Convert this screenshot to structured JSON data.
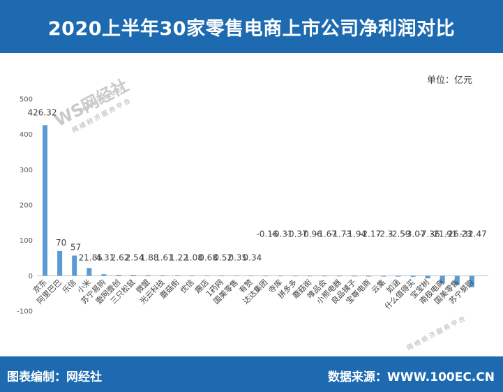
{
  "header": {
    "title": "2020上半年30家零售电商上市公司净利润对比"
  },
  "unit_label": "单位：亿元",
  "footer": {
    "left": "图表编制：网经社",
    "right": "数据来源：WWW.100EC.CN"
  },
  "watermark": {
    "logo": "WS网经社",
    "url": "WWW.100EC.CN",
    "slogan": "网络经济服务平台"
  },
  "colors": {
    "brand": "#1d6ab0",
    "bar": "#5b9bd5"
  },
  "chart_data": {
    "type": "bar",
    "title": "",
    "xlabel": "",
    "ylabel": "",
    "ylim": [
      -100,
      500
    ],
    "yticks": [
      -100,
      0,
      100,
      200,
      300,
      400,
      500
    ],
    "categories": [
      "京东",
      "阿里巴巴",
      "乐信",
      "小米",
      "苏宁易购",
      "壹网壹创",
      "三只松鼠",
      "微盟",
      "光云科技",
      "蘑菇街",
      "优信",
      "趣店",
      "1药网",
      "国美零售",
      "有赞",
      "达达集团",
      "寺库",
      "拼多多",
      "蘑菇街",
      "唯品会",
      "小熊电器",
      "良品铺子",
      "宝尊电商",
      "云集",
      "如涵",
      "什么值得买",
      "宝宝树",
      "南极电商",
      "国美零售",
      "苏宁易购"
    ],
    "values": [
      426.32,
      70,
      57,
      21.85,
      4.31,
      2.62,
      2.54,
      1.88,
      1.61,
      1.22,
      1.08,
      0.68,
      0.52,
      0.35,
      0.34,
      -0.16,
      -0.31,
      -0.37,
      -0.96,
      -1.67,
      -1.73,
      -1.94,
      -2.17,
      -2.3,
      -2.59,
      -3.07,
      -7.36,
      -21.91,
      -26.23,
      -32.47
    ],
    "value_labels": [
      "426.32",
      "70",
      "57",
      "21.85",
      "4.31",
      "2.62",
      "2.54",
      "1.88",
      "1.61",
      "1.22",
      "1.08",
      "0.68",
      "0.52",
      "0.35",
      "0.34",
      "-0.16",
      "-0.31",
      "-0.37",
      "-0.96",
      "-1.67",
      "-1.73",
      "-1.94",
      "-2.17",
      "-2.3",
      "-2.59",
      "-3.07",
      "-7.36",
      "-21.91",
      "-26.23",
      "-32.47"
    ],
    "grid": false,
    "legend": "none"
  }
}
